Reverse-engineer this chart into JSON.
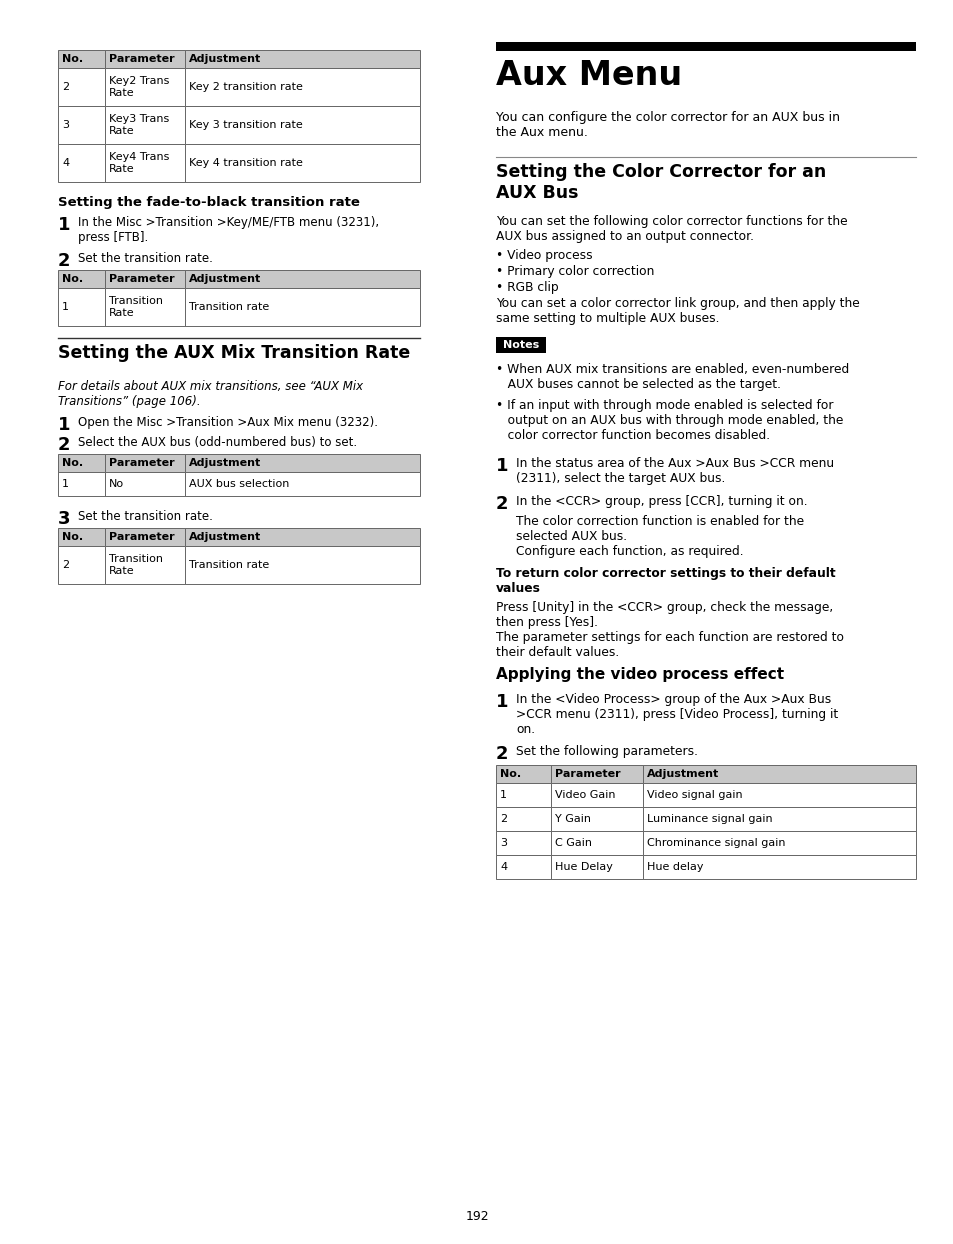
{
  "page_number": "192",
  "bg_color": "#ffffff",
  "left_col": {
    "table1": {
      "headers": [
        "No.",
        "Parameter",
        "Adjustment"
      ],
      "rows": [
        [
          "2",
          "Key2 Trans\nRate",
          "Key 2 transition rate"
        ],
        [
          "3",
          "Key3 Trans\nRate",
          "Key 3 transition rate"
        ],
        [
          "4",
          "Key4 Trans\nRate",
          "Key 4 transition rate"
        ]
      ]
    },
    "section1_title": "Setting the fade-to-black transition rate",
    "step1_num": "1",
    "step1_text": "In the Misc >Transition >Key/ME/FTB menu (3231),\npress [FTB].",
    "step2_num": "2",
    "step2_text": "Set the transition rate.",
    "table2": {
      "headers": [
        "No.",
        "Parameter",
        "Adjustment"
      ],
      "rows": [
        [
          "1",
          "Transition\nRate",
          "Transition rate"
        ]
      ]
    },
    "section2_title": "Setting the AUX Mix Transition Rate",
    "italic_note": "For details about AUX mix transitions, see “AUX Mix\nTransitions” (page 106).",
    "aux_step1_num": "1",
    "aux_step1_text": "Open the Misc >Transition >Aux Mix menu (3232).",
    "aux_step2_num": "2",
    "aux_step2_text": "Select the AUX bus (odd-numbered bus) to set.",
    "table3": {
      "headers": [
        "No.",
        "Parameter",
        "Adjustment"
      ],
      "rows": [
        [
          "1",
          "No",
          "AUX bus selection"
        ]
      ]
    },
    "aux_step3_num": "3",
    "aux_step3_text": "Set the transition rate.",
    "table4": {
      "headers": [
        "No.",
        "Parameter",
        "Adjustment"
      ],
      "rows": [
        [
          "2",
          "Transition\nRate",
          "Transition rate"
        ]
      ]
    }
  },
  "right_col": {
    "top_bar_color": "#000000",
    "main_title": "Aux Menu",
    "intro_text": "You can configure the color corrector for an AUX bus in\nthe Aux menu.",
    "section_title": "Setting the Color Corrector for an\nAUX Bus",
    "body_text": "You can set the following color corrector functions for the\nAUX bus assigned to an output connector.",
    "bullets": [
      "• Video process",
      "• Primary color correction",
      "• RGB clip"
    ],
    "body_text2": "You can set a color corrector link group, and then apply the\nsame setting to multiple AUX buses.",
    "notes_label": "Notes",
    "note_bullets": [
      "• When AUX mix transitions are enabled, even-numbered\n   AUX buses cannot be selected as the target.",
      "• If an input with through mode enabled is selected for\n   output on an AUX bus with through mode enabled, the\n   color corrector function becomes disabled."
    ],
    "step1_num": "1",
    "step1_text": "In the status area of the Aux >Aux Bus >CCR menu\n(2311), select the target AUX bus.",
    "step2_num": "2",
    "step2_text": "In the <CCR> group, press [CCR], turning it on.",
    "step2_sub": "The color correction function is enabled for the\nselected AUX bus.\nConfigure each function, as required.",
    "bold_heading": "To return color corrector settings to their default\nvalues",
    "bold_body": "Press [Unity] in the <CCR> group, check the message,\nthen press [Yes].\nThe parameter settings for each function are restored to\ntheir default values.",
    "section2_title": "Applying the video process effect",
    "vp_step1_num": "1",
    "vp_step1_text": "In the <Video Process> group of the Aux >Aux Bus\n>CCR menu (2311), press [Video Process], turning it\non.",
    "vp_step2_num": "2",
    "vp_step2_text": "Set the following parameters.",
    "table5": {
      "headers": [
        "No.",
        "Parameter",
        "Adjustment"
      ],
      "rows": [
        [
          "1",
          "Video Gain",
          "Video signal gain"
        ],
        [
          "2",
          "Y Gain",
          "Luminance signal gain"
        ],
        [
          "3",
          "C Gain",
          "Chrominance signal gain"
        ],
        [
          "4",
          "Hue Delay",
          "Hue delay"
        ]
      ]
    }
  }
}
